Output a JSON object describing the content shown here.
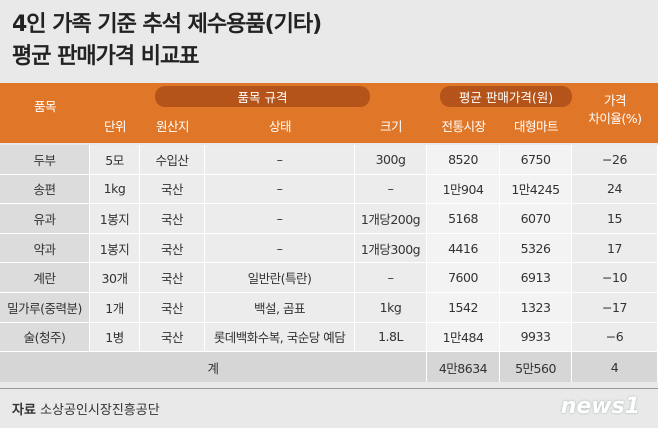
{
  "header": {
    "title_lines": [
      "4인 가족 기준 추석 제수용품(기타)",
      "평균 판매가격 비교표"
    ]
  },
  "table": {
    "group_headers": {
      "item": "품목",
      "spec": "품목 규격",
      "price": "평균 판매가격(원)",
      "diff": [
        "가격",
        "차이율(%)"
      ]
    },
    "columns": [
      "단위",
      "원산지",
      "상태",
      "크기",
      "전통시장",
      "대형마트"
    ],
    "rows": [
      [
        "두부",
        "5모",
        "수입산",
        "–",
        "300g",
        "8520",
        "6750",
        "−26"
      ],
      [
        "송편",
        "1kg",
        "국산",
        "–",
        "–",
        "1만904",
        "1만4245",
        "24"
      ],
      [
        "유과",
        "1봉지",
        "국산",
        "–",
        "1개당200g",
        "5168",
        "6070",
        "15"
      ],
      [
        "약과",
        "1봉지",
        "국산",
        "–",
        "1개당300g",
        "4416",
        "5326",
        "17"
      ],
      [
        "계란",
        "30개",
        "국산",
        "일반란(특란)",
        "–",
        "7600",
        "6913",
        "−10"
      ],
      [
        "밀가루(중력분)",
        "1개",
        "국산",
        "백설, 곰표",
        "1kg",
        "1542",
        "1323",
        "−17"
      ],
      [
        "술(청주)",
        "1병",
        "국산",
        "롯데백화수복, 국순당 예담",
        "1.8L",
        "1만484",
        "9933",
        "−6"
      ]
    ],
    "total": {
      "label": "계",
      "values": [
        "4만8634",
        "5만560",
        "4"
      ]
    }
  },
  "footer": {
    "source_label": "자료",
    "source": "소상공인시장진흥공단",
    "logo": "news1"
  }
}
